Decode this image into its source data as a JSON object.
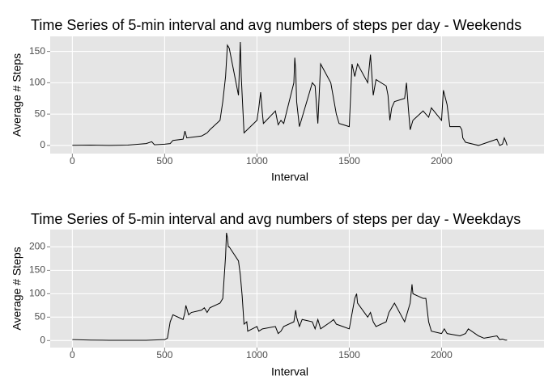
{
  "chart_data": [
    {
      "type": "line",
      "title": "Time Series of 5-min interval and avg numbers of steps per day - Weekends",
      "x_label": "Interval",
      "y_label": "Average # Steps",
      "grid": true,
      "color": "#000000",
      "xlim": [
        -120,
        2555
      ],
      "ylim": [
        -13,
        174
      ],
      "xticks": [
        0,
        500,
        1000,
        1500,
        2000
      ],
      "yticks": [
        0,
        50,
        100,
        150
      ],
      "x": [
        0,
        100,
        200,
        300,
        400,
        430,
        445,
        500,
        530,
        545,
        600,
        610,
        620,
        700,
        730,
        745,
        800,
        815,
        830,
        840,
        850,
        900,
        910,
        915,
        930,
        1000,
        1010,
        1020,
        1030,
        1035,
        1100,
        1110,
        1115,
        1130,
        1145,
        1200,
        1205,
        1210,
        1215,
        1230,
        1300,
        1315,
        1330,
        1345,
        1400,
        1430,
        1445,
        1500,
        1515,
        1530,
        1545,
        1600,
        1615,
        1630,
        1645,
        1700,
        1710,
        1720,
        1730,
        1745,
        1800,
        1810,
        1820,
        1830,
        1845,
        1900,
        1930,
        1945,
        2000,
        2010,
        2030,
        2045,
        2100,
        2110,
        2115,
        2130,
        2200,
        2230,
        2300,
        2315,
        2330,
        2340,
        2350,
        2355
      ],
      "values": [
        0.2,
        0.5,
        0,
        0.5,
        3,
        6,
        1,
        2,
        3,
        8,
        10,
        23,
        12,
        15,
        20,
        25,
        40,
        70,
        110,
        160,
        155,
        80,
        165,
        110,
        20,
        40,
        60,
        85,
        50,
        35,
        55,
        40,
        33,
        40,
        35,
        100,
        140,
        120,
        70,
        30,
        100,
        95,
        35,
        130,
        100,
        50,
        35,
        30,
        130,
        110,
        130,
        100,
        145,
        80,
        105,
        95,
        80,
        40,
        60,
        70,
        75,
        100,
        60,
        25,
        40,
        55,
        45,
        60,
        40,
        88,
        65,
        30,
        30,
        25,
        12,
        5,
        0,
        3,
        10,
        0,
        2,
        12,
        5,
        0
      ]
    },
    {
      "type": "line",
      "title": "Time Series of 5-min interval and avg numbers of steps per day - Weekdays",
      "x_label": "Interval",
      "y_label": "Average # Steps",
      "grid": true,
      "color": "#000000",
      "xlim": [
        -120,
        2555
      ],
      "ylim": [
        -15,
        237
      ],
      "xticks": [
        0,
        500,
        1000,
        1500,
        2000
      ],
      "yticks": [
        0,
        50,
        100,
        150,
        200
      ],
      "x": [
        0,
        100,
        200,
        300,
        400,
        500,
        515,
        530,
        545,
        600,
        610,
        615,
        630,
        645,
        700,
        715,
        730,
        745,
        800,
        815,
        830,
        835,
        840,
        845,
        850,
        900,
        910,
        920,
        930,
        945,
        950,
        1000,
        1010,
        1030,
        1100,
        1115,
        1130,
        1145,
        1200,
        1210,
        1215,
        1230,
        1245,
        1300,
        1315,
        1330,
        1345,
        1400,
        1415,
        1430,
        1500,
        1530,
        1540,
        1545,
        1600,
        1615,
        1630,
        1645,
        1700,
        1715,
        1730,
        1745,
        1800,
        1815,
        1830,
        1840,
        1845,
        1900,
        1915,
        1930,
        1945,
        2000,
        2015,
        2030,
        2100,
        2130,
        2145,
        2200,
        2230,
        2300,
        2315,
        2330,
        2345,
        2355
      ],
      "values": [
        2,
        1,
        0.5,
        0.5,
        0.5,
        2,
        5,
        40,
        55,
        45,
        60,
        75,
        55,
        60,
        65,
        70,
        60,
        70,
        80,
        90,
        180,
        230,
        220,
        200,
        200,
        170,
        140,
        95,
        35,
        40,
        20,
        30,
        20,
        25,
        30,
        15,
        20,
        30,
        40,
        65,
        50,
        30,
        45,
        40,
        25,
        45,
        25,
        40,
        45,
        35,
        25,
        90,
        100,
        80,
        50,
        60,
        40,
        30,
        40,
        60,
        70,
        80,
        40,
        60,
        80,
        120,
        100,
        90,
        90,
        40,
        20,
        15,
        25,
        15,
        10,
        15,
        25,
        10,
        5,
        10,
        2,
        3,
        1,
        1
      ]
    }
  ]
}
